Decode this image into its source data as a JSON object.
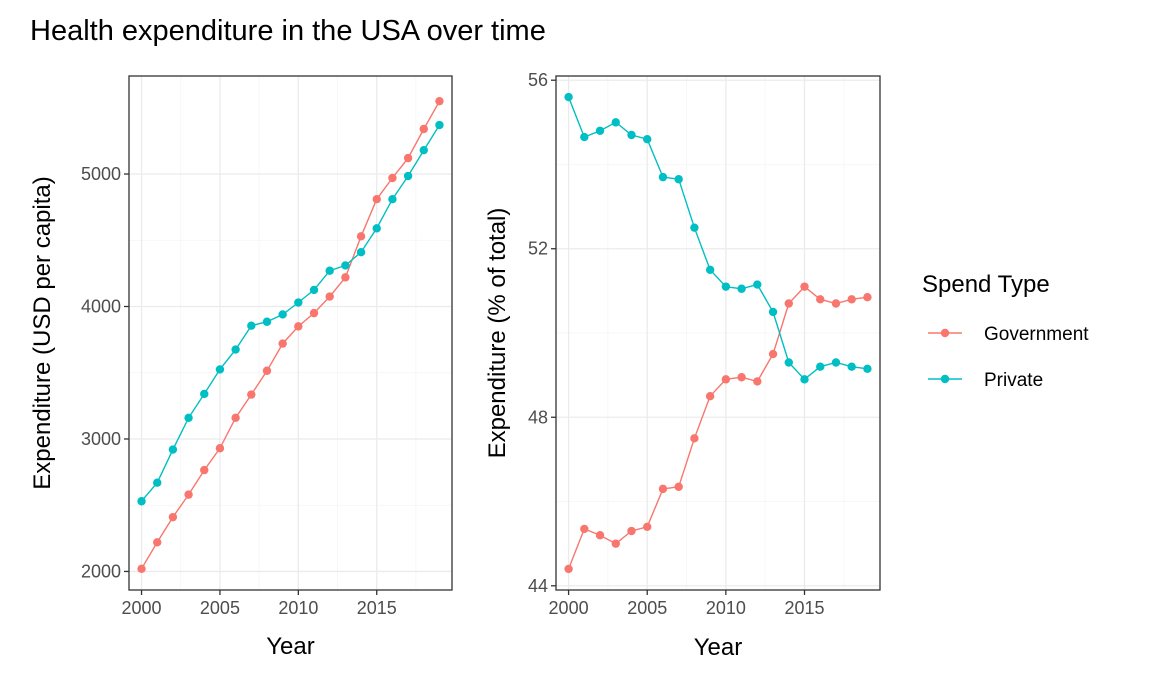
{
  "title": "Health expenditure in the USA over time",
  "chart_data": [
    {
      "type": "line",
      "xlabel": "Year",
      "ylabel": "Expenditure (USD per capita)",
      "xlim": [
        1999.2,
        2019.8
      ],
      "ylim": [
        1860,
        5740
      ],
      "x_ticks": [
        2000,
        2005,
        2010,
        2015
      ],
      "y_ticks": [
        2000,
        3000,
        4000,
        5000
      ],
      "grid": true,
      "x": [
        2000,
        2001,
        2002,
        2003,
        2004,
        2005,
        2006,
        2007,
        2008,
        2009,
        2010,
        2011,
        2012,
        2013,
        2014,
        2015,
        2016,
        2017,
        2018,
        2019
      ],
      "series": [
        {
          "name": "Government",
          "color": "#F8766D",
          "values": [
            2020,
            2220,
            2410,
            2580,
            2765,
            2930,
            3160,
            3335,
            3515,
            3720,
            3850,
            3950,
            4075,
            4220,
            4530,
            4810,
            4970,
            5120,
            5340,
            5550
          ]
        },
        {
          "name": "Private",
          "color": "#00BFC4",
          "values": [
            2530,
            2670,
            2920,
            3160,
            3340,
            3525,
            3675,
            3855,
            3885,
            3940,
            4030,
            4125,
            4270,
            4310,
            4410,
            4590,
            4810,
            4985,
            5180,
            5370
          ]
        }
      ]
    },
    {
      "type": "line",
      "xlabel": "Year",
      "ylabel": "Expenditure (% of total)",
      "xlim": [
        1999.2,
        2019.8
      ],
      "ylim": [
        43.9,
        56.1
      ],
      "x_ticks": [
        2000,
        2005,
        2010,
        2015
      ],
      "y_ticks": [
        44,
        48,
        52,
        56
      ],
      "grid": true,
      "x": [
        2000,
        2001,
        2002,
        2003,
        2004,
        2005,
        2006,
        2007,
        2008,
        2009,
        2010,
        2011,
        2012,
        2013,
        2014,
        2015,
        2016,
        2017,
        2018,
        2019
      ],
      "series": [
        {
          "name": "Government",
          "color": "#F8766D",
          "values": [
            44.4,
            45.35,
            45.2,
            45.0,
            45.3,
            45.4,
            46.3,
            46.35,
            47.5,
            48.5,
            48.9,
            48.95,
            48.85,
            49.5,
            50.7,
            51.1,
            50.8,
            50.7,
            50.8,
            50.85
          ]
        },
        {
          "name": "Private",
          "color": "#00BFC4",
          "values": [
            55.6,
            54.65,
            54.8,
            55.0,
            54.7,
            54.6,
            53.7,
            53.65,
            52.5,
            51.5,
            51.1,
            51.05,
            51.15,
            50.5,
            49.3,
            48.9,
            49.2,
            49.3,
            49.2,
            49.15
          ]
        }
      ]
    }
  ],
  "legend": {
    "title": "Spend Type",
    "placement": "right",
    "items": [
      {
        "label": "Government",
        "color": "#F8766D"
      },
      {
        "label": "Private",
        "color": "#00BFC4"
      }
    ]
  }
}
